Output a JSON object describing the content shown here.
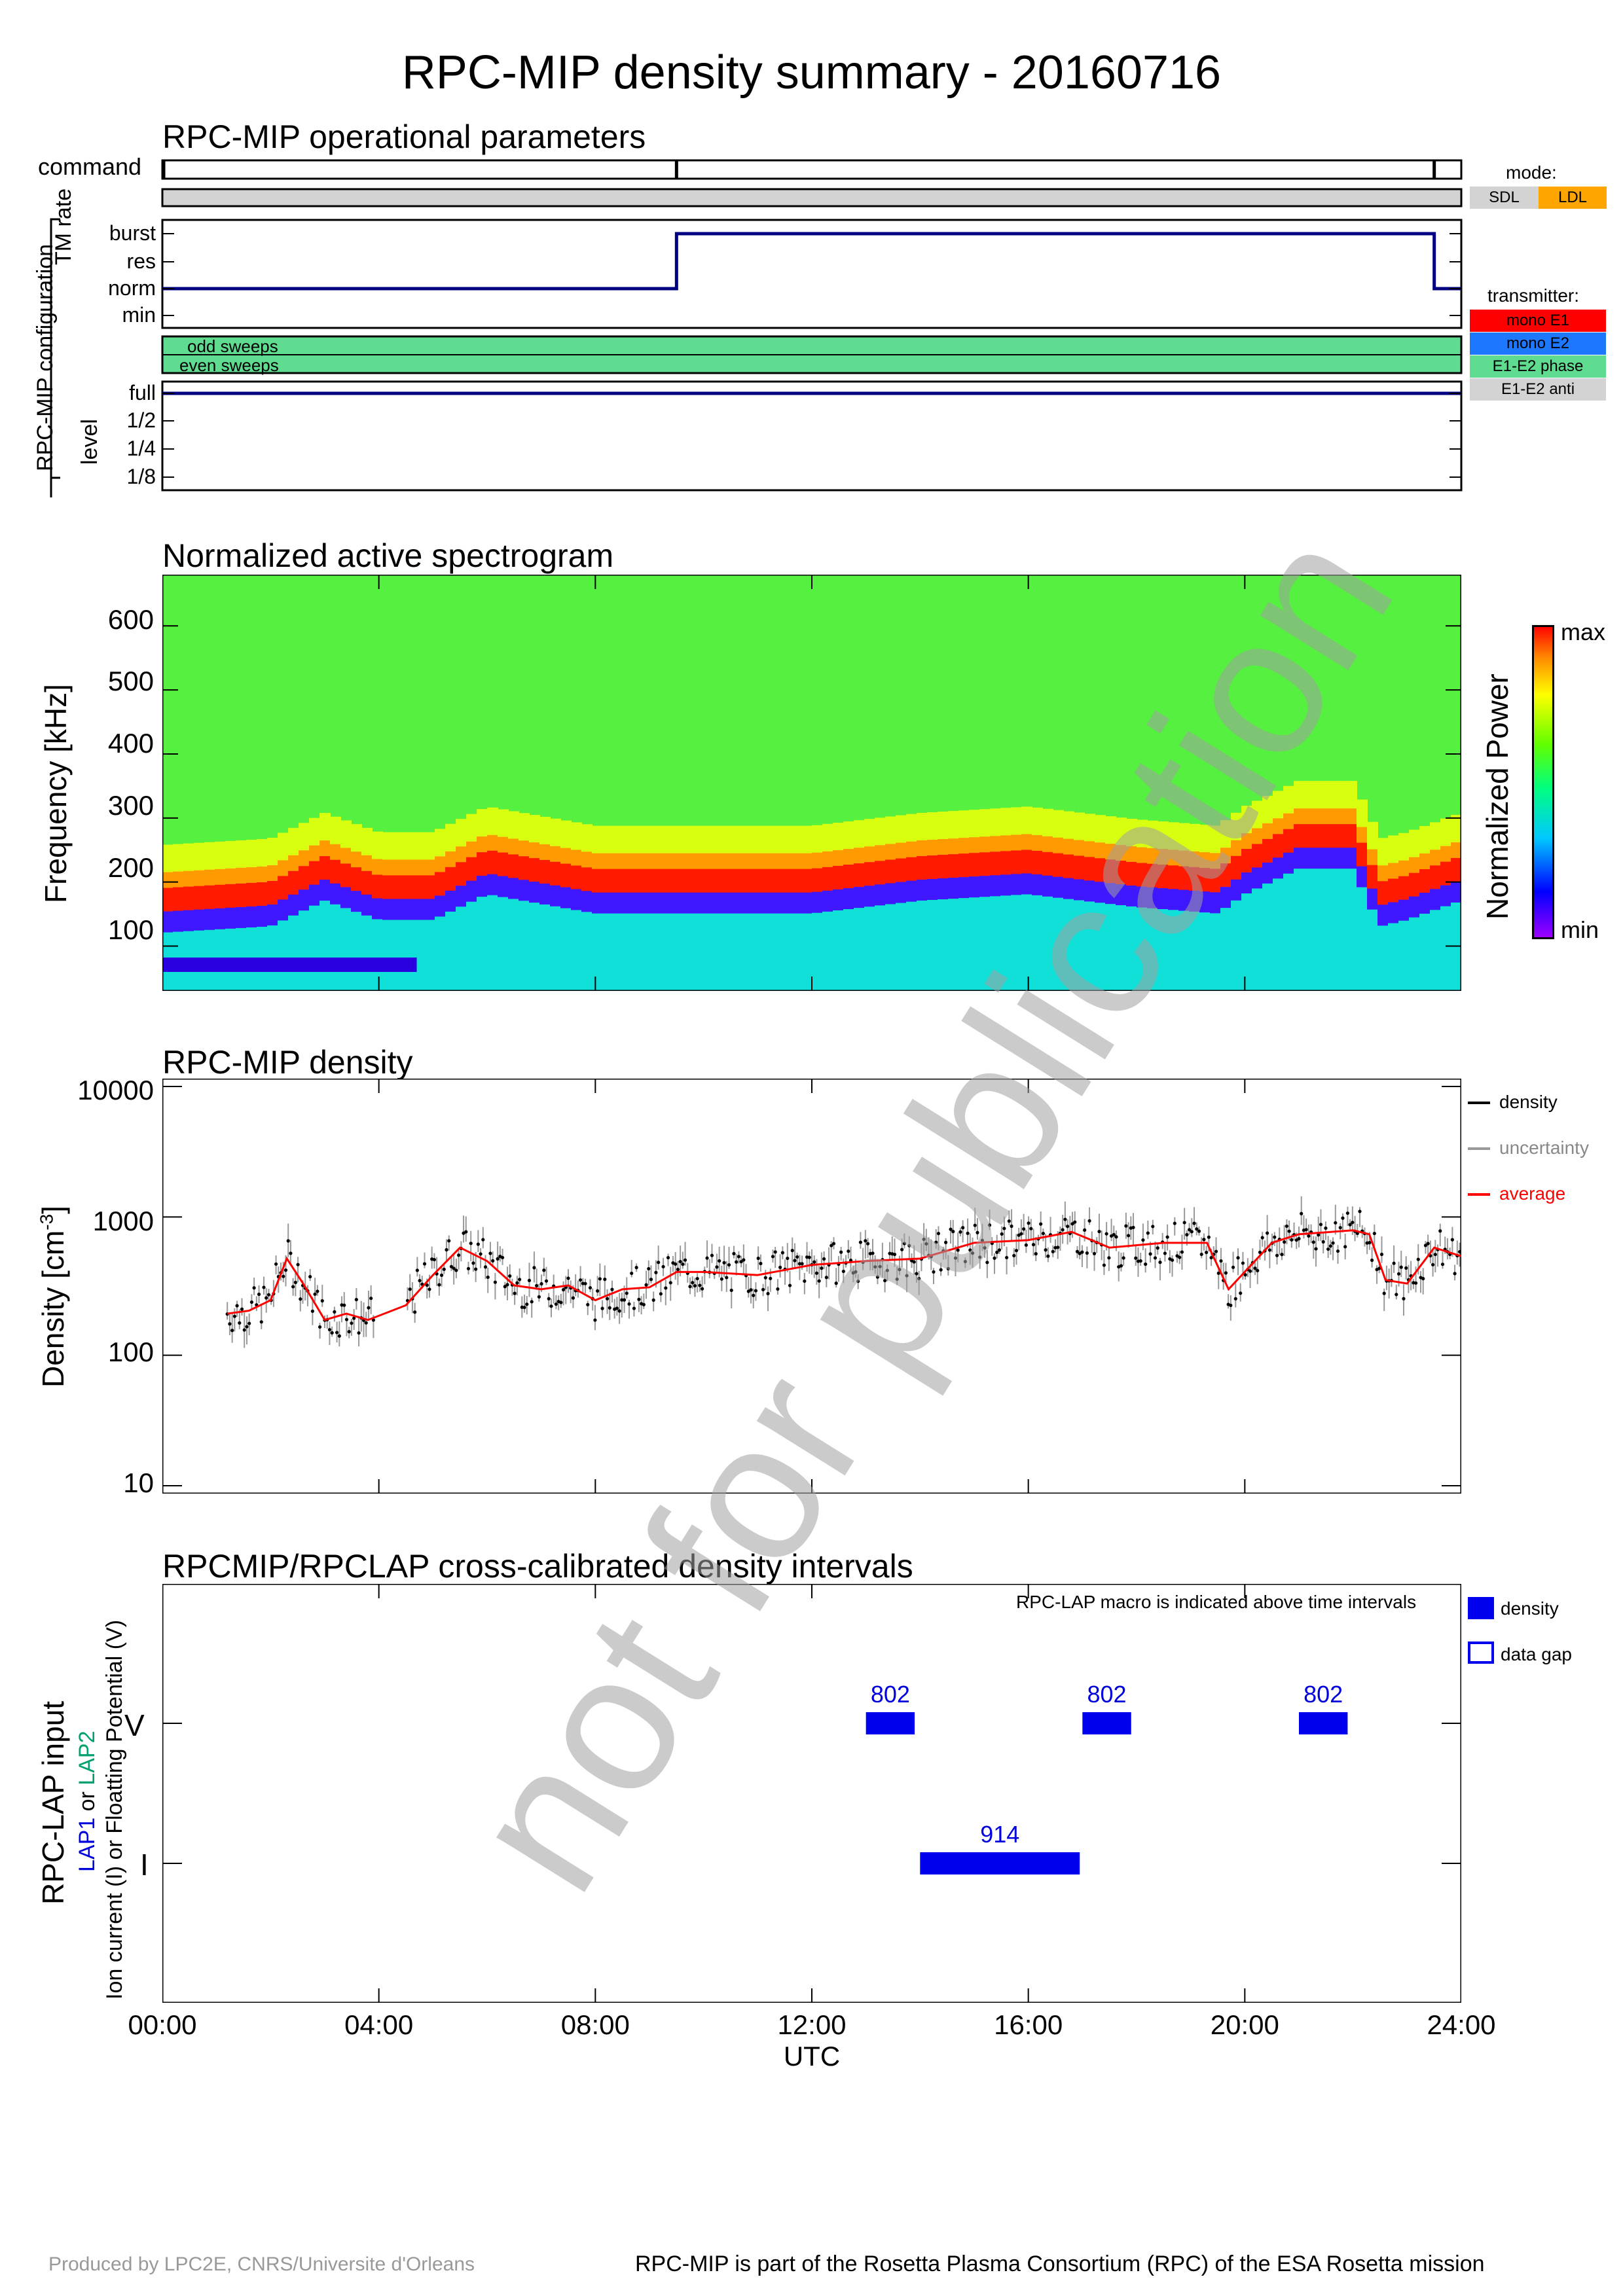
{
  "title": "RPC-MIP density summary - 20160716",
  "panels": {
    "operational": {
      "title": "RPC-MIP operational parameters",
      "command_label": "command",
      "config_label": "RPC-MIP configuration",
      "tm_label": "TM rate",
      "tm_levels": [
        "burst",
        "res",
        "norm",
        "min"
      ],
      "sweeps": [
        "odd sweeps",
        "even sweeps"
      ],
      "level_label": "level",
      "levels": [
        "full",
        "1/2",
        "1/4",
        "1/8"
      ],
      "command_times_h": [
        0.0,
        9.5,
        23.5
      ],
      "tm_rate_steps": [
        {
          "from": 0.0,
          "to": 9.5,
          "value": "norm"
        },
        {
          "from": 9.5,
          "to": 23.5,
          "value": "burst"
        },
        {
          "from": 23.5,
          "to": 24.0,
          "value": "norm"
        }
      ],
      "level_value": "full",
      "mode_legend": {
        "title": "mode:",
        "items": [
          {
            "label": "SDL",
            "color": "#d3d3d3"
          },
          {
            "label": "LDL",
            "color": "#ffa500"
          }
        ]
      },
      "transmitter_legend": {
        "title": "transmitter:",
        "items": [
          {
            "label": "mono E1",
            "color": "#ff0000"
          },
          {
            "label": "mono E2",
            "color": "#1e78ff"
          },
          {
            "label": "E1-E2 phase",
            "color": "#5fdc8f"
          },
          {
            "label": "E1-E2 anti",
            "color": "#d3d3d3"
          }
        ]
      }
    },
    "spectrogram": {
      "title": "Normalized active spectrogram",
      "ylabel": "Frequency [kHz]",
      "yticks": [
        "600",
        "500",
        "400",
        "300",
        "200",
        "100"
      ],
      "colorbar_label": "Normalized Power",
      "colorbar_max": "max",
      "colorbar_min": "min"
    },
    "density": {
      "title": "RPC-MIP density",
      "ylabel_main": "Density [cm",
      "ylabel_sup": "-3",
      "ylabel_end": "]",
      "yticks": [
        "10000",
        "1000",
        "100",
        "10"
      ],
      "legend": [
        {
          "label": "density",
          "color": "#000000"
        },
        {
          "label": "uncertainty",
          "color": "#999999"
        },
        {
          "label": "average",
          "color": "#ff0000"
        }
      ]
    },
    "crosscal": {
      "title": "RPCMIP/RPCLAP cross-calibrated density intervals",
      "note": "RPC-LAP macro is indicated above time intervals",
      "ylabel_main": "RPC-LAP input",
      "ylabel_sub_lap1": "LAP1",
      "ylabel_sub_or": " or ",
      "ylabel_sub_lap2": "LAP2",
      "ylabel_sub2": "Ion current (I) or Floatting Potential (V)",
      "yticks": [
        "V",
        "I"
      ],
      "legend": [
        {
          "label": "density"
        },
        {
          "label": "data gap"
        }
      ],
      "intervals": [
        {
          "row": "V",
          "start_h": 13.0,
          "end_h": 13.9,
          "macro": "802"
        },
        {
          "row": "V",
          "start_h": 17.0,
          "end_h": 17.9,
          "macro": "802"
        },
        {
          "row": "V",
          "start_h": 21.0,
          "end_h": 21.9,
          "macro": "802"
        },
        {
          "row": "I",
          "start_h": 14.0,
          "end_h": 16.95,
          "macro": "914"
        }
      ]
    }
  },
  "xaxis": {
    "ticks": [
      "00:00",
      "04:00",
      "08:00",
      "12:00",
      "16:00",
      "20:00",
      "24:00"
    ],
    "label": "UTC"
  },
  "chart_data": [
    {
      "type": "line",
      "title": "RPC-MIP density",
      "xlabel": "UTC",
      "ylabel": "Density [cm-3]",
      "yscale": "log",
      "ylim": [
        10,
        10000
      ],
      "xlim": [
        0,
        24
      ],
      "series": [
        {
          "name": "average",
          "x": [
            1.2,
            1.6,
            2.0,
            2.3,
            2.6,
            3.0,
            3.4,
            3.8,
            4.5,
            5.0,
            5.5,
            6.0,
            6.5,
            7.0,
            7.5,
            8.0,
            8.5,
            9.0,
            9.5,
            10.0,
            11.0,
            12.0,
            13.0,
            14.0,
            15.0,
            16.0,
            16.8,
            17.5,
            18.5,
            19.3,
            19.7,
            20.5,
            21.0,
            22.0,
            22.3,
            22.6,
            23.0,
            23.5,
            24.0
          ],
          "values": [
            200,
            210,
            250,
            500,
            330,
            180,
            200,
            180,
            230,
            380,
            600,
            480,
            320,
            300,
            320,
            250,
            300,
            310,
            400,
            400,
            380,
            450,
            480,
            500,
            650,
            680,
            780,
            600,
            650,
            650,
            300,
            650,
            750,
            800,
            750,
            350,
            330,
            600,
            520
          ]
        }
      ]
    },
    {
      "type": "heatmap",
      "title": "Normalized active spectrogram",
      "xlabel": "UTC",
      "ylabel": "Frequency [kHz]",
      "ylim": [
        30,
        680
      ],
      "xlim": [
        0,
        24
      ],
      "series": [
        {
          "name": "max-power frequency",
          "x": [
            0,
            2,
            3,
            4,
            5,
            6,
            8,
            10,
            12,
            14,
            16,
            18,
            19.5,
            20,
            21,
            22,
            22.5,
            23,
            24
          ],
          "values": [
            170,
            180,
            220,
            190,
            190,
            230,
            200,
            200,
            200,
            220,
            230,
            210,
            200,
            230,
            270,
            270,
            180,
            190,
            220
          ]
        }
      ]
    }
  ],
  "watermark": "not for publication",
  "footer_left": "Produced by LPC2E, CNRS/Universite d'Orleans",
  "footer_right": "RPC-MIP is part of the Rosetta Plasma Consortium (RPC) of the ESA Rosetta mission"
}
